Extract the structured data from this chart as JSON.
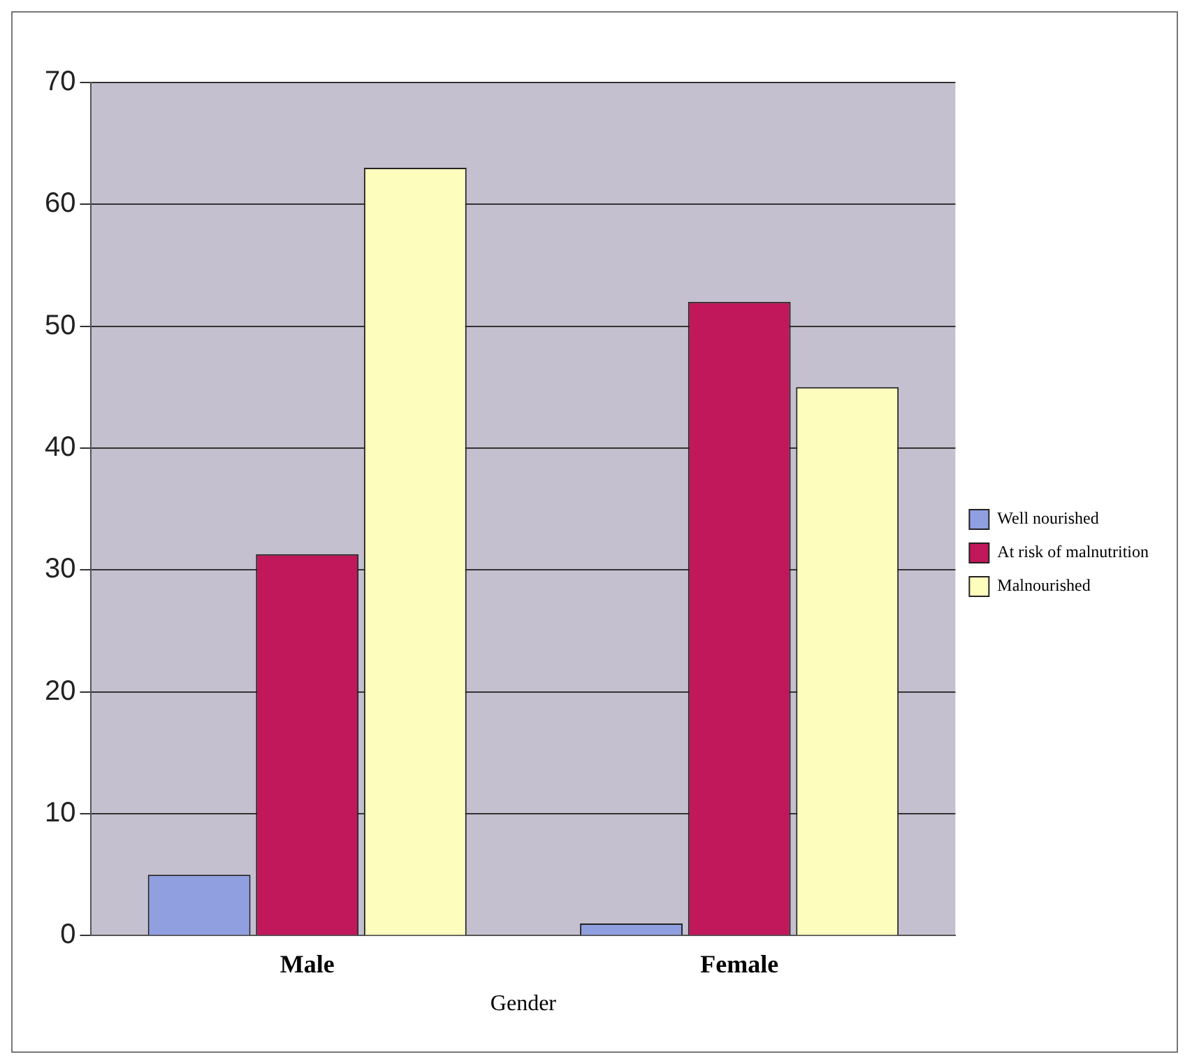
{
  "chart_data": {
    "type": "bar",
    "xlabel": "Gender",
    "categories": [
      "Male",
      "Female"
    ],
    "series": [
      {
        "name": "Well nourished",
        "color": "#8f9fe0",
        "values": [
          5,
          1
        ]
      },
      {
        "name": "At risk of malnutrition",
        "color": "#c0185a",
        "values": [
          31.3,
          52
        ]
      },
      {
        "name": "Malnourished",
        "color": "#fdfdbe",
        "values": [
          63,
          45
        ]
      }
    ],
    "ylim": [
      0,
      70
    ],
    "yticks": [
      0,
      10,
      20,
      30,
      40,
      50,
      60,
      70
    ],
    "grid": "y",
    "legend": "right"
  }
}
